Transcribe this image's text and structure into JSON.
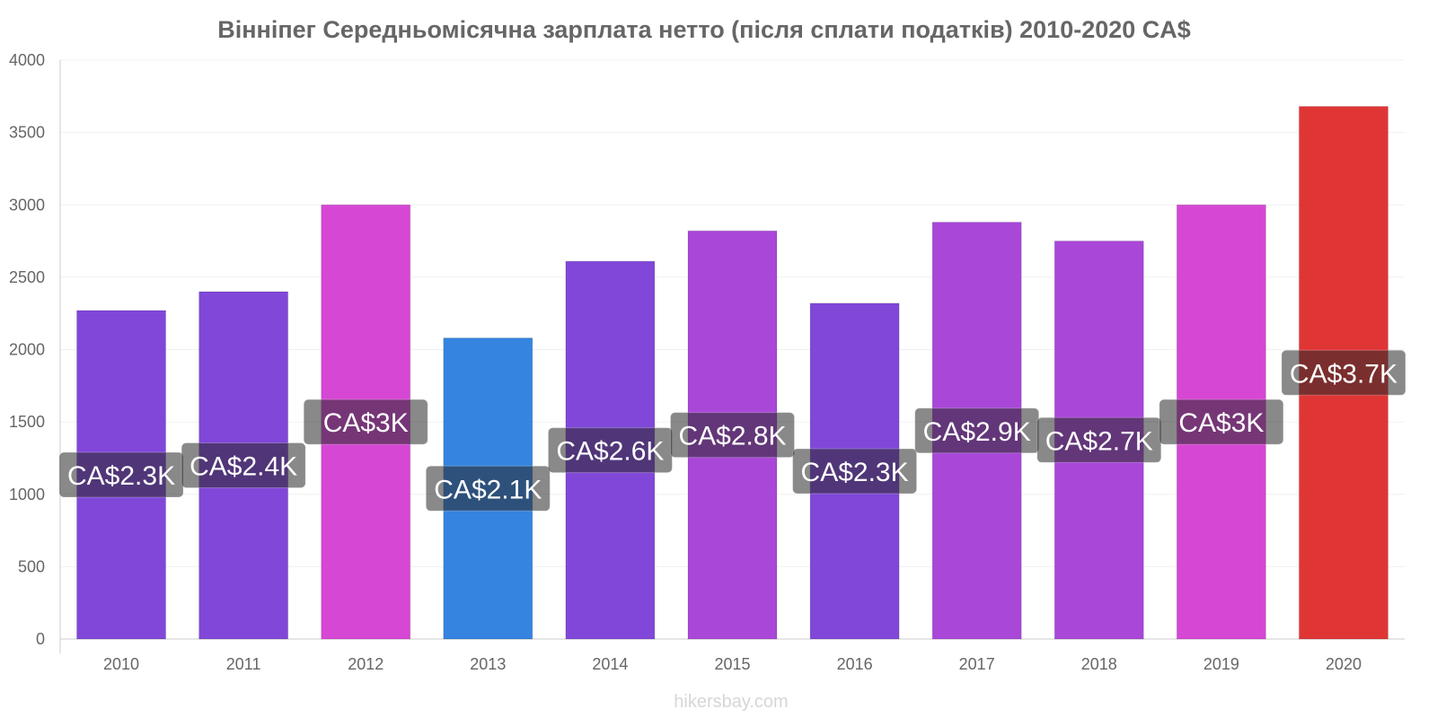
{
  "chart_data": {
    "type": "bar",
    "title": "Вінніпег Середньомісячна зарплата нетто (після сплати податків) 2010-2020 CA$",
    "xlabel": "",
    "ylabel": "",
    "ylim": [
      0,
      4000
    ],
    "yticks": [
      0,
      500,
      1000,
      1500,
      2000,
      2500,
      3000,
      3500,
      4000
    ],
    "categories": [
      "2010",
      "2011",
      "2012",
      "2013",
      "2014",
      "2015",
      "2016",
      "2017",
      "2018",
      "2019",
      "2020"
    ],
    "values": [
      2270,
      2400,
      3000,
      2080,
      2610,
      2820,
      2320,
      2880,
      2750,
      3000,
      3680
    ],
    "data_labels": [
      "CA$2.3K",
      "CA$2.4K",
      "CA$3K",
      "CA$2.1K",
      "CA$2.6K",
      "CA$2.8K",
      "CA$2.3K",
      "CA$2.9K",
      "CA$2.7K",
      "CA$3K",
      "CA$3.7K"
    ],
    "colors": [
      "#8047d9",
      "#8047d9",
      "#d647d4",
      "#3584e0",
      "#8047d9",
      "#a947d9",
      "#8047d9",
      "#a947d9",
      "#a947d9",
      "#d647d4",
      "#e03535"
    ],
    "grid": true,
    "legend": "none"
  },
  "credit": "hikersbay.com"
}
